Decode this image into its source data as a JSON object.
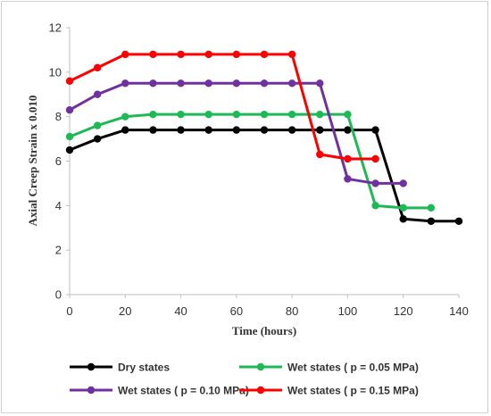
{
  "chart_data": {
    "type": "line",
    "xlabel": "Time (hours)",
    "ylabel": "Axial Creep Strain x 0.010",
    "xlim": [
      0,
      140
    ],
    "ylim": [
      0,
      12
    ],
    "xticks": [
      "0",
      "20",
      "40",
      "60",
      "80",
      "100",
      "120",
      "140"
    ],
    "yticks": [
      "0",
      "2",
      "4",
      "6",
      "8",
      "10",
      "12"
    ],
    "grid": false,
    "legend_position": "bottom",
    "series": [
      {
        "name": "Dry states",
        "color": "#000000",
        "x": [
          0,
          10,
          20,
          30,
          40,
          50,
          60,
          70,
          80,
          90,
          100,
          110,
          120,
          130,
          140
        ],
        "y": [
          6.5,
          7.0,
          7.4,
          7.4,
          7.4,
          7.4,
          7.4,
          7.4,
          7.4,
          7.4,
          7.4,
          7.4,
          3.4,
          3.3,
          3.3
        ]
      },
      {
        "name": "Wet states ( p = 0.05 MPa)",
        "color": "#1db954",
        "x": [
          0,
          10,
          20,
          30,
          40,
          50,
          60,
          70,
          80,
          90,
          100,
          110,
          120,
          130
        ],
        "y": [
          7.1,
          7.6,
          8.0,
          8.1,
          8.1,
          8.1,
          8.1,
          8.1,
          8.1,
          8.1,
          8.1,
          4.0,
          3.9,
          3.9
        ]
      },
      {
        "name": "Wet states ( p = 0.10 MPa)",
        "color": "#7030a0",
        "x": [
          0,
          10,
          20,
          30,
          40,
          50,
          60,
          70,
          80,
          90,
          100,
          110,
          120
        ],
        "y": [
          8.3,
          9.0,
          9.5,
          9.5,
          9.5,
          9.5,
          9.5,
          9.5,
          9.5,
          9.5,
          5.2,
          5.0,
          5.0
        ]
      },
      {
        "name": "Wet states ( p = 0.15 MPa)",
        "color": "#ff0000",
        "x": [
          0,
          10,
          20,
          30,
          40,
          50,
          60,
          70,
          80,
          90,
          100,
          110
        ],
        "y": [
          9.6,
          10.2,
          10.8,
          10.8,
          10.8,
          10.8,
          10.8,
          10.8,
          10.8,
          6.3,
          6.1,
          6.1
        ]
      }
    ]
  }
}
